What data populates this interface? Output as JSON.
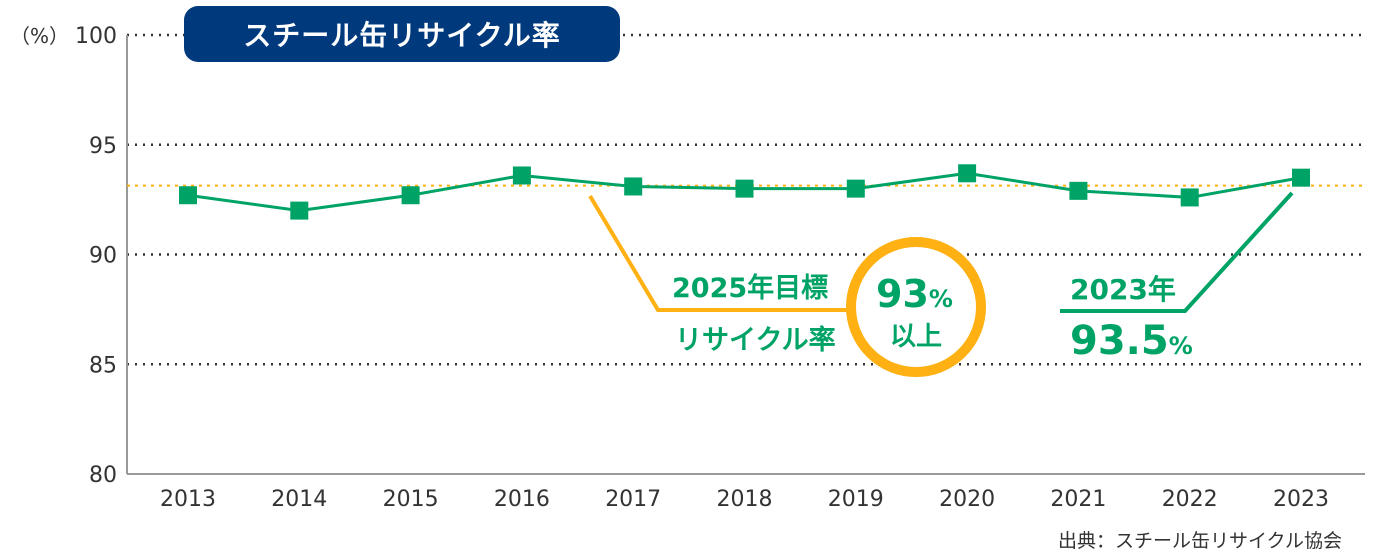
{
  "chart_data": {
    "type": "line",
    "title": "スチール缶リサイクル率",
    "ylabel": "（%）",
    "ylim": [
      80,
      100
    ],
    "yticks": [
      80,
      85,
      90,
      95,
      100
    ],
    "categories": [
      "2013",
      "2014",
      "2015",
      "2016",
      "2017",
      "2018",
      "2019",
      "2020",
      "2021",
      "2022",
      "2023"
    ],
    "values": [
      92.7,
      92.0,
      92.7,
      93.6,
      93.1,
      93.0,
      93.0,
      93.7,
      92.9,
      92.6,
      93.5
    ],
    "target_line": 93,
    "grid": true,
    "source": "出典：スチール缶リサイクル協会",
    "annotations": {
      "target_l1": "2025年目標",
      "target_l2": "リサイクル率",
      "target_value": "93",
      "target_unit": "%",
      "target_suffix": "以上",
      "latest_year": "2023年",
      "latest_value": "93.5",
      "latest_unit": "%"
    },
    "colors": {
      "series": "#00a366",
      "target": "#ffb012",
      "title_bg": "#003a7d"
    }
  }
}
